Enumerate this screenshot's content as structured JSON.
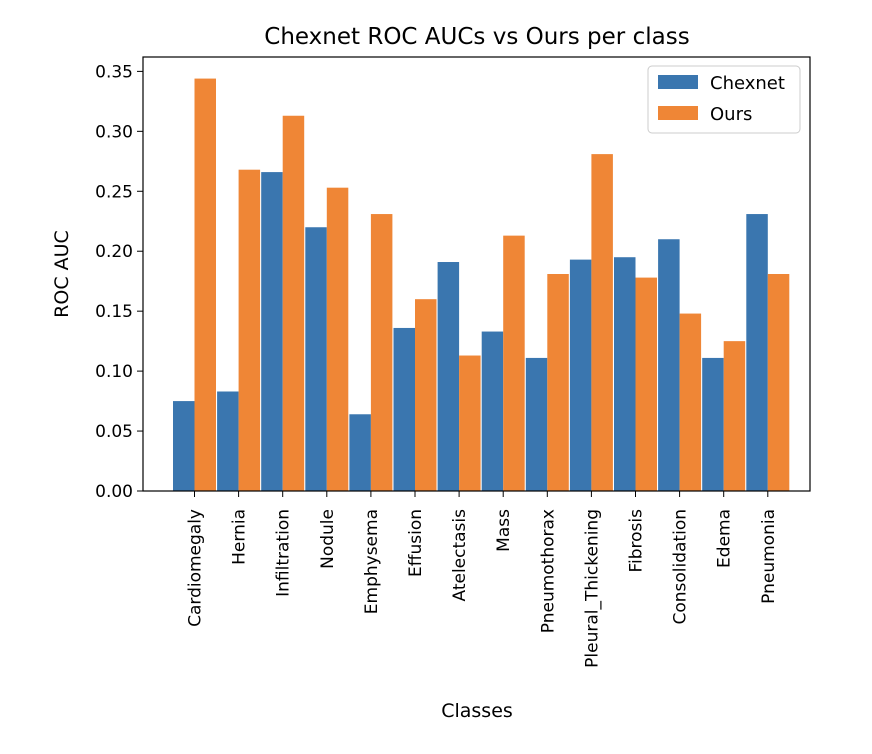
{
  "chart_data": {
    "type": "bar",
    "title": "Chexnet ROC AUCs vs Ours per class",
    "xlabel": "Classes",
    "ylabel": "ROC AUC",
    "ylim": [
      0,
      0.362
    ],
    "yticks": [
      "0.00",
      "0.05",
      "0.10",
      "0.15",
      "0.20",
      "0.25",
      "0.30",
      "0.35"
    ],
    "categories": [
      "Cardiomegaly",
      "Hernia",
      "Infiltration",
      "Nodule",
      "Emphysema",
      "Effusion",
      "Atelectasis",
      "Mass",
      "Pneumothorax",
      "Pleural_Thickening",
      "Fibrosis",
      "Consolidation",
      "Edema",
      "Pneumonia"
    ],
    "series": [
      {
        "name": "Chexnet",
        "color": "#3a76af",
        "values": [
          0.075,
          0.083,
          0.266,
          0.22,
          0.064,
          0.136,
          0.191,
          0.133,
          0.111,
          0.193,
          0.195,
          0.21,
          0.111,
          0.231
        ]
      },
      {
        "name": "Ours",
        "color": "#ef8636",
        "values": [
          0.344,
          0.268,
          0.313,
          0.253,
          0.231,
          0.16,
          0.113,
          0.213,
          0.181,
          0.281,
          0.178,
          0.148,
          0.125,
          0.181
        ]
      }
    ],
    "legend": "top-right",
    "grid": false
  }
}
